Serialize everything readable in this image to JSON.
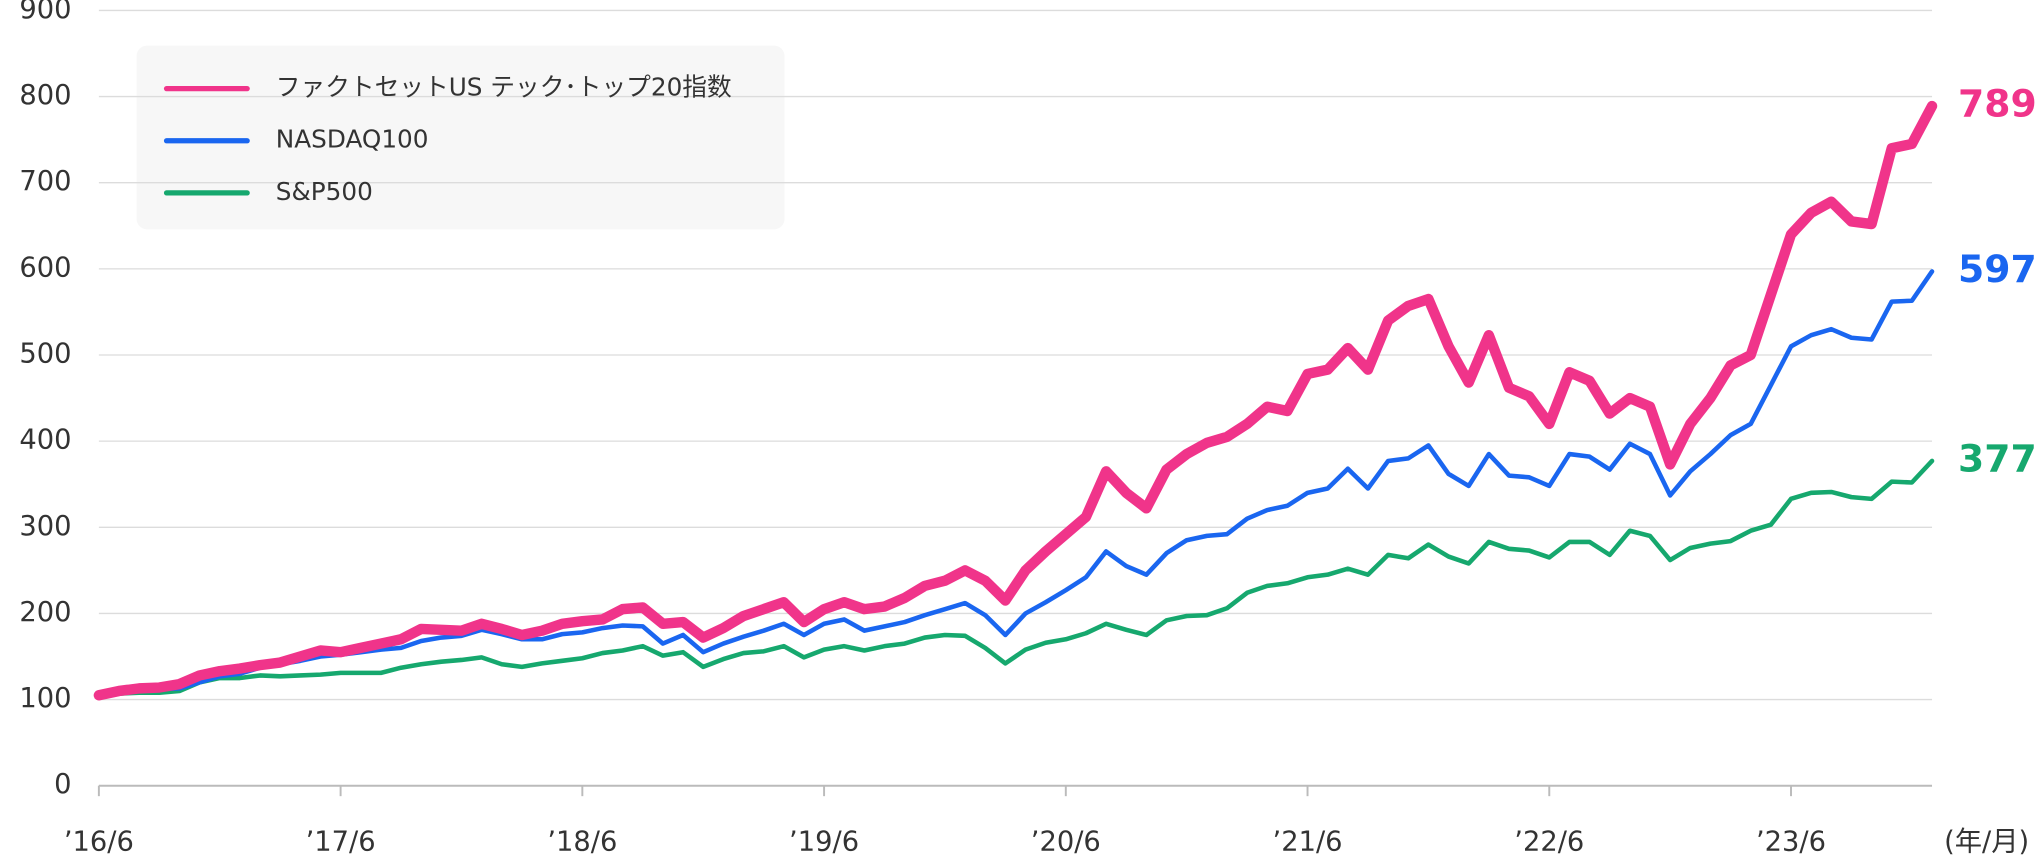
{
  "chart_data": {
    "type": "line",
    "categories": [
      "’16/6",
      null,
      null,
      null,
      null,
      null,
      null,
      null,
      null,
      null,
      null,
      null,
      "’17/6",
      null,
      null,
      null,
      null,
      null,
      null,
      null,
      null,
      null,
      null,
      null,
      "’18/6",
      null,
      null,
      null,
      null,
      null,
      null,
      null,
      null,
      null,
      null,
      null,
      "’19/6",
      null,
      null,
      null,
      null,
      null,
      null,
      null,
      null,
      null,
      null,
      null,
      "’20/6",
      null,
      null,
      null,
      null,
      null,
      null,
      null,
      null,
      null,
      null,
      null,
      "’21/6",
      null,
      null,
      null,
      null,
      null,
      null,
      null,
      null,
      null,
      null,
      null,
      "’22/6",
      null,
      null,
      null,
      null,
      null,
      null,
      null,
      null,
      null,
      null,
      null,
      "’23/6",
      null,
      null,
      null,
      null,
      null,
      null,
      null
    ],
    "x_label": "(年/月)",
    "ylim": [
      0,
      900
    ],
    "yticks": [
      0,
      100,
      200,
      300,
      400,
      500,
      600,
      700,
      800,
      900
    ],
    "grid": true,
    "legend": "upper left",
    "series": [
      {
        "name": "ファクトセットUS テック･トップ20指数",
        "color": "#f0348a",
        "values": [
          105,
          110,
          113,
          114,
          118,
          128,
          133,
          136,
          140,
          143,
          150,
          157,
          155,
          160,
          165,
          170,
          182,
          181,
          180,
          188,
          182,
          175,
          180,
          188,
          191,
          193,
          205,
          207,
          188,
          190,
          172,
          183,
          197,
          205,
          213,
          190,
          205,
          213,
          205,
          208,
          218,
          232,
          238,
          250,
          238,
          215,
          250,
          272,
          292,
          312,
          365,
          340,
          322,
          367,
          385,
          398,
          405,
          420,
          440,
          435,
          478,
          483,
          508,
          483,
          540,
          557,
          565,
          510,
          468,
          523,
          462,
          452,
          420,
          480,
          470,
          432,
          450,
          440,
          373,
          420,
          450,
          488,
          500,
          570,
          640,
          665,
          678,
          655,
          652,
          740,
          745,
          789
        ]
      },
      {
        "name": "NASDAQ100",
        "color": "#1a66f0",
        "values": [
          103,
          107,
          110,
          112,
          113,
          120,
          127,
          130,
          137,
          141,
          145,
          150,
          152,
          155,
          158,
          160,
          168,
          172,
          174,
          181,
          176,
          170,
          170,
          176,
          178,
          183,
          186,
          185,
          165,
          175,
          155,
          165,
          173,
          180,
          188,
          175,
          188,
          193,
          180,
          185,
          190,
          198,
          205,
          212,
          198,
          175,
          200,
          213,
          227,
          242,
          272,
          255,
          245,
          270,
          285,
          290,
          292,
          310,
          320,
          325,
          340,
          345,
          368,
          345,
          377,
          380,
          395,
          362,
          348,
          385,
          360,
          358,
          348,
          385,
          382,
          367,
          397,
          385,
          337,
          365,
          385,
          407,
          420,
          465,
          510,
          523,
          530,
          520,
          518,
          562,
          563,
          597
        ]
      },
      {
        "name": "S&P500",
        "color": "#16a86e",
        "values": [
          105,
          107,
          108,
          108,
          110,
          120,
          125,
          125,
          128,
          127,
          128,
          129,
          131,
          131,
          131,
          137,
          141,
          144,
          146,
          149,
          141,
          138,
          142,
          145,
          148,
          154,
          157,
          162,
          151,
          155,
          138,
          147,
          154,
          156,
          162,
          149,
          158,
          162,
          157,
          162,
          165,
          172,
          175,
          174,
          160,
          142,
          158,
          166,
          170,
          177,
          188,
          181,
          175,
          192,
          197,
          198,
          206,
          224,
          232,
          235,
          242,
          245,
          252,
          245,
          268,
          264,
          280,
          266,
          258,
          283,
          275,
          273,
          265,
          283,
          283,
          268,
          296,
          290,
          262,
          276,
          281,
          284,
          296,
          303,
          333,
          340,
          341,
          335,
          333,
          353,
          352,
          377
        ]
      }
    ]
  }
}
